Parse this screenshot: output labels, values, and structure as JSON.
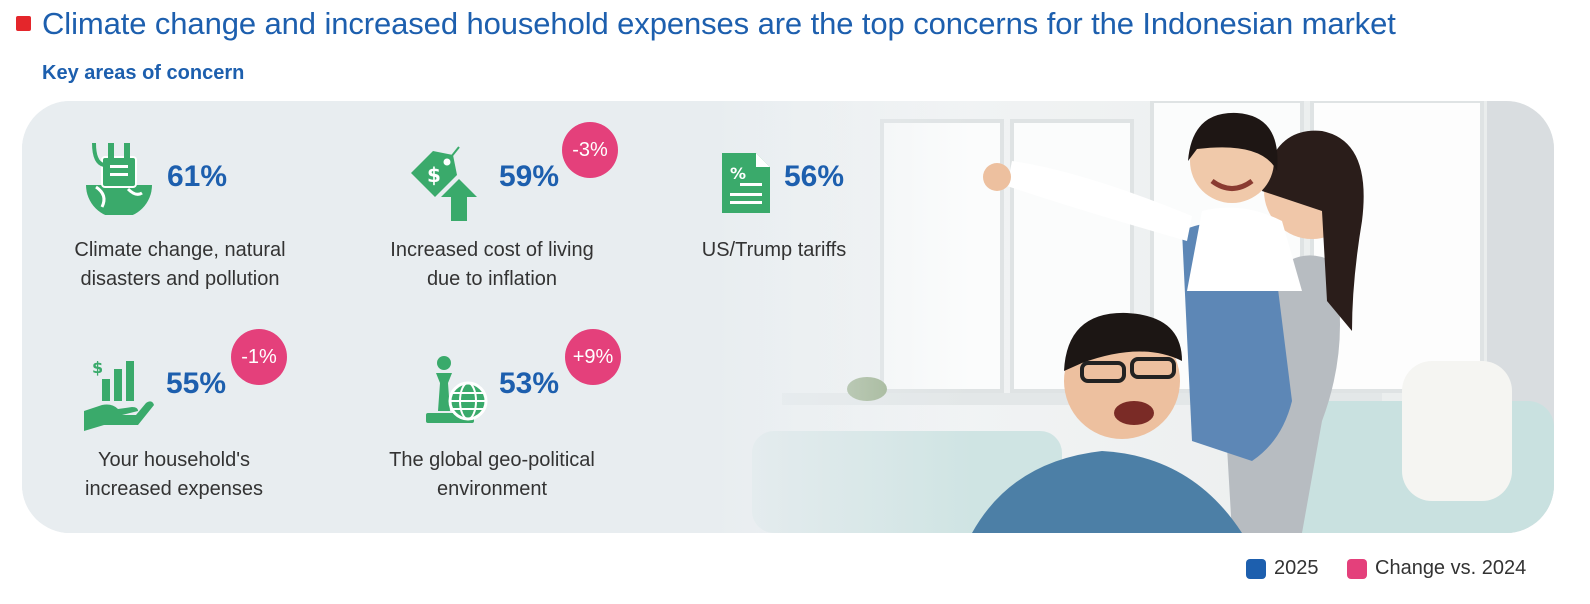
{
  "header": {
    "title": "Climate change and increased household expenses are the top concerns for the Indonesian market",
    "subtitle": "Key areas of concern"
  },
  "concerns": [
    {
      "value": "61%",
      "label_line1": "Climate change, natural",
      "label_line2": "disasters and pollution",
      "icon": "globe-factory-icon",
      "change": ""
    },
    {
      "value": "59%",
      "label_line1": "Increased cost of living",
      "label_line2": "due to inflation",
      "icon": "price-tag-up-arrow-icon",
      "change": "-3%"
    },
    {
      "value": "56%",
      "label_line1": "US/Trump tariffs",
      "label_line2": "",
      "icon": "percent-document-icon",
      "change": ""
    },
    {
      "value": "55%",
      "label_line1": "Your household's",
      "label_line2": "increased expenses",
      "icon": "hand-money-chart-icon",
      "change": "-1%"
    },
    {
      "value": "53%",
      "label_line1": "The global geo-political",
      "label_line2": "environment",
      "icon": "chess-globe-icon",
      "change": "+9%"
    }
  ],
  "legend": [
    {
      "label": "2025",
      "color": "#1d5fae"
    },
    {
      "label": "Change vs. 2024",
      "color": "#e4407b"
    }
  ],
  "colors": {
    "title": "#1d5fae",
    "accent_red": "#e4262b",
    "icon_green": "#3aaa6b",
    "badge_pink": "#e4407b"
  }
}
